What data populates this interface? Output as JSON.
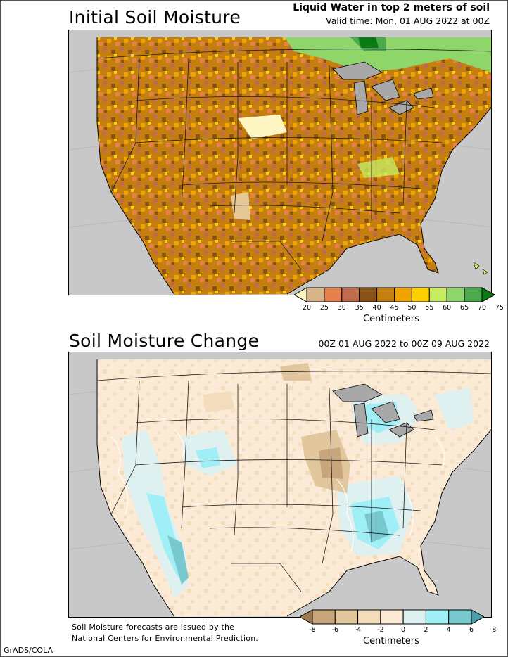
{
  "top": {
    "title": "Initial Soil Moisture",
    "header_line1": "Liquid Water in top 2 meters of soil",
    "header_line2": "Valid time: Mon, 01 AUG 2022 at 00Z",
    "colorbar": {
      "labels": [
        "20",
        "25",
        "30",
        "35",
        "40",
        "45",
        "50",
        "55",
        "60",
        "65",
        "70",
        "75"
      ],
      "colors": [
        "#fdf6c3",
        "#d9b48a",
        "#e8804e",
        "#c06a4e",
        "#8a5418",
        "#c47f10",
        "#f0a400",
        "#ffd000",
        "#c8ec60",
        "#8ed66a",
        "#4caa4c",
        "#0a7a14"
      ],
      "units": "Centimeters"
    }
  },
  "bottom": {
    "title": "Soil Moisture Change",
    "header": "00Z 01 AUG 2022 to 00Z 09 AUG 2022",
    "colorbar": {
      "labels": [
        "-8",
        "-6",
        "-4",
        "-2",
        "0",
        "2",
        "4",
        "6",
        "8"
      ],
      "colors": [
        "#a07850",
        "#c8a67c",
        "#e2c69e",
        "#f3dcbc",
        "#fbebd6",
        "#dff0f0",
        "#a0eef6",
        "#78c8d0",
        "#4aa0a8"
      ],
      "units": "Centimeters"
    }
  },
  "note": {
    "line1": "Soil Moisture forecasts are issued by the",
    "line2": "National Centers for Environmental Prediction."
  },
  "credit": "GrADS/COLA"
}
